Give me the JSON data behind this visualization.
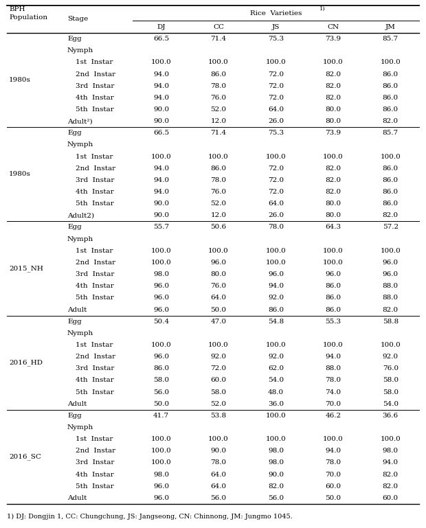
{
  "footnote": "1) DJ: Dongjin 1, CC: Chungchung, JS: Jangseong, CN: Chinnong, JM: Jungmo 1045.",
  "sections": [
    {
      "population": "1980s",
      "rows": [
        {
          "stage": "Egg",
          "indent": 0,
          "values": [
            "66.5",
            "71.4",
            "75.3",
            "73.9",
            "85.7"
          ]
        },
        {
          "stage": "Nymph",
          "indent": 0,
          "values": [
            "",
            "",
            "",
            "",
            ""
          ]
        },
        {
          "stage": "1st  Instar",
          "indent": 1,
          "values": [
            "100.0",
            "100.0",
            "100.0",
            "100.0",
            "100.0"
          ]
        },
        {
          "stage": "2nd  Instar",
          "indent": 1,
          "values": [
            "94.0",
            "86.0",
            "72.0",
            "82.0",
            "86.0"
          ]
        },
        {
          "stage": "3rd  Instar",
          "indent": 1,
          "values": [
            "94.0",
            "78.0",
            "72.0",
            "82.0",
            "86.0"
          ]
        },
        {
          "stage": "4th  Instar",
          "indent": 1,
          "values": [
            "94.0",
            "76.0",
            "72.0",
            "82.0",
            "86.0"
          ]
        },
        {
          "stage": "5th  Instar",
          "indent": 1,
          "values": [
            "90.0",
            "52.0",
            "64.0",
            "80.0",
            "86.0"
          ]
        },
        {
          "stage": "Adult²)",
          "indent": 0,
          "values": [
            "90.0",
            "12.0",
            "26.0",
            "80.0",
            "82.0"
          ]
        }
      ]
    },
    {
      "population": "1980s",
      "rows": [
        {
          "stage": "Egg",
          "indent": 0,
          "values": [
            "66.5",
            "71.4",
            "75.3",
            "73.9",
            "85.7"
          ]
        },
        {
          "stage": "Nymph",
          "indent": 0,
          "values": [
            "",
            "",
            "",
            "",
            ""
          ]
        },
        {
          "stage": "1st  Instar",
          "indent": 1,
          "values": [
            "100.0",
            "100.0",
            "100.0",
            "100.0",
            "100.0"
          ]
        },
        {
          "stage": "2nd  Instar",
          "indent": 1,
          "values": [
            "94.0",
            "86.0",
            "72.0",
            "82.0",
            "86.0"
          ]
        },
        {
          "stage": "3rd  Instar",
          "indent": 1,
          "values": [
            "94.0",
            "78.0",
            "72.0",
            "82.0",
            "86.0"
          ]
        },
        {
          "stage": "4th  Instar",
          "indent": 1,
          "values": [
            "94.0",
            "76.0",
            "72.0",
            "82.0",
            "86.0"
          ]
        },
        {
          "stage": "5th  Instar",
          "indent": 1,
          "values": [
            "90.0",
            "52.0",
            "64.0",
            "80.0",
            "86.0"
          ]
        },
        {
          "stage": "Adult2)",
          "indent": 0,
          "values": [
            "90.0",
            "12.0",
            "26.0",
            "80.0",
            "82.0"
          ]
        }
      ]
    },
    {
      "population": "2015_NH",
      "rows": [
        {
          "stage": "Egg",
          "indent": 0,
          "values": [
            "55.7",
            "50.6",
            "78.0",
            "64.3",
            "57.2"
          ]
        },
        {
          "stage": "Nymph",
          "indent": 0,
          "values": [
            "",
            "",
            "",
            "",
            ""
          ]
        },
        {
          "stage": "1st  Instar",
          "indent": 1,
          "values": [
            "100.0",
            "100.0",
            "100.0",
            "100.0",
            "100.0"
          ]
        },
        {
          "stage": "2nd  Instar",
          "indent": 1,
          "values": [
            "100.0",
            "96.0",
            "100.0",
            "100.0",
            "96.0"
          ]
        },
        {
          "stage": "3rd  Instar",
          "indent": 1,
          "values": [
            "98.0",
            "80.0",
            "96.0",
            "96.0",
            "96.0"
          ]
        },
        {
          "stage": "4th  Instar",
          "indent": 1,
          "values": [
            "96.0",
            "76.0",
            "94.0",
            "86.0",
            "88.0"
          ]
        },
        {
          "stage": "5th  Instar",
          "indent": 1,
          "values": [
            "96.0",
            "64.0",
            "92.0",
            "86.0",
            "88.0"
          ]
        },
        {
          "stage": "Adult",
          "indent": 0,
          "values": [
            "96.0",
            "50.0",
            "86.0",
            "86.0",
            "82.0"
          ]
        }
      ]
    },
    {
      "population": "2016_HD",
      "rows": [
        {
          "stage": "Egg",
          "indent": 0,
          "values": [
            "50.4",
            "47.0",
            "54.8",
            "55.3",
            "58.8"
          ]
        },
        {
          "stage": "Nymph",
          "indent": 0,
          "values": [
            "",
            "",
            "",
            "",
            ""
          ]
        },
        {
          "stage": "1st  Instar",
          "indent": 1,
          "values": [
            "100.0",
            "100.0",
            "100.0",
            "100.0",
            "100.0"
          ]
        },
        {
          "stage": "2nd  Instar",
          "indent": 1,
          "values": [
            "96.0",
            "92.0",
            "92.0",
            "94.0",
            "92.0"
          ]
        },
        {
          "stage": "3rd  Instar",
          "indent": 1,
          "values": [
            "86.0",
            "72.0",
            "62.0",
            "88.0",
            "76.0"
          ]
        },
        {
          "stage": "4th  Instar",
          "indent": 1,
          "values": [
            "58.0",
            "60.0",
            "54.0",
            "78.0",
            "58.0"
          ]
        },
        {
          "stage": "5th  Instar",
          "indent": 1,
          "values": [
            "56.0",
            "58.0",
            "48.0",
            "74.0",
            "58.0"
          ]
        },
        {
          "stage": "Adult",
          "indent": 0,
          "values": [
            "50.0",
            "52.0",
            "36.0",
            "70.0",
            "54.0"
          ]
        }
      ]
    },
    {
      "population": "2016_SC",
      "rows": [
        {
          "stage": "Egg",
          "indent": 0,
          "values": [
            "41.7",
            "53.8",
            "100.0",
            "46.2",
            "36.6"
          ]
        },
        {
          "stage": "Nymph",
          "indent": 0,
          "values": [
            "",
            "",
            "",
            "",
            ""
          ]
        },
        {
          "stage": "1st  Instar",
          "indent": 1,
          "values": [
            "100.0",
            "100.0",
            "100.0",
            "100.0",
            "100.0"
          ]
        },
        {
          "stage": "2nd  Instar",
          "indent": 1,
          "values": [
            "100.0",
            "90.0",
            "98.0",
            "94.0",
            "98.0"
          ]
        },
        {
          "stage": "3rd  Instar",
          "indent": 1,
          "values": [
            "100.0",
            "78.0",
            "98.0",
            "78.0",
            "94.0"
          ]
        },
        {
          "stage": "4th  Instar",
          "indent": 1,
          "values": [
            "98.0",
            "64.0",
            "90.0",
            "70.0",
            "82.0"
          ]
        },
        {
          "stage": "5th  Instar",
          "indent": 1,
          "values": [
            "96.0",
            "64.0",
            "82.0",
            "60.0",
            "82.0"
          ]
        },
        {
          "stage": "Adult",
          "indent": 0,
          "values": [
            "96.0",
            "56.0",
            "56.0",
            "50.0",
            "60.0"
          ]
        }
      ]
    }
  ],
  "bg_color": "white",
  "text_color": "black",
  "line_color": "black",
  "font_size": 7.5,
  "header_font_size": 7.5
}
